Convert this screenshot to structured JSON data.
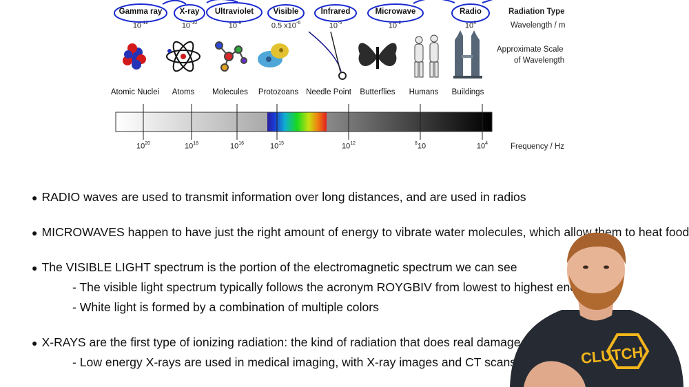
{
  "radiation_types": [
    "Gamma ray",
    "X-ray",
    "Ultraviolet",
    "Visible",
    "Infrared",
    "Microwave",
    "Radio"
  ],
  "wavelengths": [
    {
      "base": "10",
      "exp": "-12"
    },
    {
      "base": "10",
      "exp": "-10"
    },
    {
      "base": "10",
      "exp": "-8"
    },
    {
      "base": "0.5 x10",
      "exp": "-6"
    },
    {
      "base": "10",
      "exp": "-5"
    },
    {
      "base": "10",
      "exp": "-2"
    },
    {
      "base": "10",
      "exp": "3"
    }
  ],
  "legend": {
    "radiation_type": "Radiation Type",
    "wavelength": "Wavelength / m",
    "scale_line1": "Approximate Scale",
    "scale_line2": "of Wavelength",
    "frequency": "Frequency / Hz"
  },
  "scale_objects": [
    "Atomic Nuclei",
    "Atoms",
    "Molecules",
    "Protozoans",
    "Needle Point",
    "Butterflies",
    "Humans",
    "Buildings"
  ],
  "frequencies": [
    {
      "base": "10",
      "exp": "20"
    },
    {
      "base": "10",
      "exp": "18"
    },
    {
      "base": "10",
      "exp": "16"
    },
    {
      "base": "10",
      "exp": "15"
    },
    {
      "base": "10",
      "exp": "12"
    },
    {
      "base": "8",
      "exp": "10"
    },
    {
      "base": "10",
      "exp": "4"
    }
  ],
  "bullets": {
    "radio": "RADIO waves are used to transmit information over long distances, and are used in radios",
    "microwave": "MICROWAVES happen to have just the right amount of energy to vibrate water molecules, which allow them to heat food",
    "visible": "The VISIBLE LIGHT spectrum is the portion of the electromagnetic spectrum we can see",
    "visible_sub1": "- The visible light spectrum typically follows the acronym ROYGBIV from lowest to highest energy",
    "visible_sub2": "- White light is formed by a combination of multiple colors",
    "xray": "X-RAYS are the first type of ionizing radiation: the kind of radiation that does real damage to livi",
    "xray_sub1": "- Low energy X-rays are used in medical imaging, with X-ray images and CT scans"
  },
  "bullet_marker": "●",
  "brand": "CLUTCH",
  "colors": {
    "annotation": "#1a2ad0",
    "shirt": "#262b33",
    "logo": "#f2b51c"
  }
}
